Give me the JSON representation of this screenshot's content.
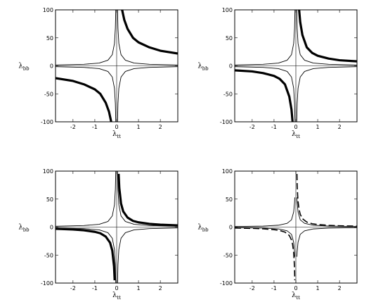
{
  "chart_data": [
    {
      "type": "line",
      "panel": "top-left",
      "xlabel": "λtt",
      "ylabel": "λbb",
      "xlim": [
        -2.8,
        2.8
      ],
      "ylim": [
        -100,
        100
      ],
      "xticks": [
        -2,
        -1,
        0,
        1,
        2
      ],
      "yticks": [
        -100,
        -50,
        0,
        50,
        100
      ],
      "xtick_labels": [
        "-2",
        "-1",
        "0",
        "1",
        "2"
      ],
      "ytick_labels": [
        "-100",
        "-50",
        "0",
        "50",
        "100"
      ],
      "series": [
        {
          "style": "solid-thin",
          "x": [
            -2.8,
            -1.5,
            -0.8,
            -0.4,
            -0.2,
            -0.1,
            -0.06,
            -0.04,
            -0.03
          ],
          "y": [
            1.5,
            2.7,
            5,
            10,
            20,
            40,
            67,
            100,
            100
          ]
        },
        {
          "style": "solid-thin",
          "x": [
            0.03,
            0.04,
            0.06,
            0.1,
            0.2,
            0.4,
            0.8,
            1.5,
            2.8
          ],
          "y": [
            100,
            100,
            67,
            40,
            20,
            10,
            5,
            2.7,
            1.5
          ]
        },
        {
          "style": "solid-thin",
          "x": [
            -2.8,
            -1.5,
            -0.8,
            -0.4,
            -0.2,
            -0.1,
            -0.06,
            -0.04
          ],
          "y": [
            -1.5,
            -2.7,
            -5,
            -10,
            -20,
            -40,
            -67,
            -100
          ]
        },
        {
          "style": "solid-thin",
          "x": [
            0.04,
            0.06,
            0.1,
            0.2,
            0.4,
            0.8,
            1.5,
            2.8
          ],
          "y": [
            -100,
            -67,
            -40,
            -20,
            -10,
            -5,
            -2.7,
            -1.5
          ]
        },
        {
          "style": "double-dash",
          "x": [
            0.25,
            0.35,
            0.5,
            0.75,
            1.0,
            1.5,
            2.0,
            2.8
          ],
          "y": [
            100,
            82,
            66,
            50,
            42,
            33,
            27,
            22
          ]
        },
        {
          "style": "double-dash",
          "x": [
            -2.8,
            -2.0,
            -1.5,
            -1.0,
            -0.75,
            -0.5,
            -0.35,
            -0.25
          ],
          "y": [
            -22,
            -27,
            -33,
            -42,
            -50,
            -66,
            -82,
            -100
          ]
        }
      ]
    },
    {
      "type": "line",
      "panel": "top-right",
      "xlabel": "λtt",
      "ylabel": "λbb",
      "xlim": [
        -2.8,
        2.8
      ],
      "ylim": [
        -100,
        100
      ],
      "xticks": [
        -2,
        -1,
        0,
        1,
        2
      ],
      "yticks": [
        -100,
        -50,
        0,
        50,
        100
      ],
      "xtick_labels": [
        "-2",
        "-1",
        "0",
        "1",
        "2"
      ],
      "ytick_labels": [
        "-100",
        "-50",
        "0",
        "50",
        "100"
      ],
      "series": [
        {
          "style": "solid-thin",
          "x": [
            -2.8,
            -1.5,
            -0.8,
            -0.4,
            -0.2,
            -0.1,
            -0.06,
            -0.04,
            -0.03
          ],
          "y": [
            1.5,
            2.7,
            5,
            10,
            20,
            40,
            67,
            100,
            100
          ]
        },
        {
          "style": "solid-thin",
          "x": [
            0.03,
            0.04,
            0.06,
            0.1,
            0.2,
            0.4,
            0.8,
            1.5,
            2.8
          ],
          "y": [
            100,
            100,
            67,
            40,
            20,
            10,
            5,
            2.7,
            1.5
          ]
        },
        {
          "style": "solid-thin",
          "x": [
            -2.8,
            -1.5,
            -0.8,
            -0.4,
            -0.2,
            -0.1,
            -0.06,
            -0.04
          ],
          "y": [
            -1.5,
            -2.7,
            -5,
            -10,
            -20,
            -40,
            -67,
            -100
          ]
        },
        {
          "style": "solid-thin",
          "x": [
            0.04,
            0.06,
            0.1,
            0.2,
            0.4,
            0.8,
            1.5,
            2.8
          ],
          "y": [
            -100,
            -67,
            -40,
            -20,
            -10,
            -5,
            -2.7,
            -1.5
          ]
        },
        {
          "style": "double-dash",
          "x": [
            0.15,
            0.2,
            0.3,
            0.5,
            0.75,
            1.0,
            1.5,
            2.0,
            2.8
          ],
          "y": [
            100,
            78,
            55,
            33,
            23,
            18,
            13,
            10,
            8
          ]
        },
        {
          "style": "double-dash",
          "x": [
            -2.8,
            -2.0,
            -1.5,
            -1.0,
            -0.75,
            -0.5,
            -0.3,
            -0.2,
            -0.15
          ],
          "y": [
            -8,
            -10,
            -13,
            -18,
            -23,
            -33,
            -55,
            -78,
            -100
          ]
        }
      ]
    },
    {
      "type": "line",
      "panel": "bottom-left",
      "xlabel": "λtt",
      "ylabel": "λbb",
      "xlim": [
        -2.8,
        2.8
      ],
      "ylim": [
        -100,
        100
      ],
      "xticks": [
        -2,
        -1,
        0,
        1,
        2
      ],
      "yticks": [
        -100,
        -50,
        0,
        50,
        100
      ],
      "xtick_labels": [
        "-2",
        "-1",
        "0",
        "1",
        "2"
      ],
      "ytick_labels": [
        "-100",
        "-50",
        "0",
        "50",
        "100"
      ],
      "series": [
        {
          "style": "solid-thin",
          "x": [
            -2.8,
            -1.5,
            -0.8,
            -0.4,
            -0.2,
            -0.1,
            -0.06,
            -0.04,
            -0.03
          ],
          "y": [
            1.5,
            2.7,
            5,
            10,
            20,
            40,
            67,
            100,
            100
          ]
        },
        {
          "style": "solid-thin",
          "x": [
            0.03,
            0.04,
            0.06,
            0.1,
            0.2,
            0.4,
            0.8,
            1.5,
            2.8
          ],
          "y": [
            100,
            100,
            67,
            40,
            20,
            10,
            5,
            2.7,
            1.5
          ]
        },
        {
          "style": "solid-thin",
          "x": [
            -2.8,
            -1.5,
            -0.8,
            -0.4,
            -0.2,
            -0.1,
            -0.06,
            -0.04
          ],
          "y": [
            -1.5,
            -2.7,
            -5,
            -10,
            -20,
            -40,
            -67,
            -100
          ]
        },
        {
          "style": "solid-thin",
          "x": [
            0.04,
            0.06,
            0.1,
            0.2,
            0.4,
            0.8,
            1.5,
            2.8
          ],
          "y": [
            -100,
            -67,
            -40,
            -20,
            -10,
            -5,
            -2.7,
            -1.5
          ]
        },
        {
          "style": "double-dash",
          "x": [
            0.09,
            0.12,
            0.2,
            0.3,
            0.5,
            0.75,
            1.0,
            1.5,
            2.0,
            2.8
          ],
          "y": [
            95,
            70,
            42,
            28,
            17,
            11,
            8.5,
            5.7,
            4.3,
            3
          ]
        },
        {
          "style": "double-dash",
          "x": [
            -2.8,
            -2.0,
            -1.5,
            -1.0,
            -0.75,
            -0.5,
            -0.3,
            -0.2,
            -0.12,
            -0.09
          ],
          "y": [
            -3,
            -4.3,
            -5.7,
            -8.5,
            -11,
            -17,
            -28,
            -42,
            -70,
            -95
          ]
        }
      ]
    },
    {
      "type": "line",
      "panel": "bottom-right",
      "xlabel": "λtt",
      "ylabel": "λbb",
      "xlim": [
        -2.8,
        2.8
      ],
      "ylim": [
        -100,
        100
      ],
      "xticks": [
        -2,
        -1,
        0,
        1,
        2
      ],
      "yticks": [
        -100,
        -50,
        0,
        50,
        100
      ],
      "xtick_labels": [
        "-2",
        "-1",
        "0",
        "1",
        "2"
      ],
      "ytick_labels": [
        "-100",
        "-50",
        "0",
        "50",
        "100"
      ],
      "series": [
        {
          "style": "solid-thin",
          "x": [
            -2.8,
            -1.5,
            -0.8,
            -0.4,
            -0.2,
            -0.1,
            -0.06,
            -0.05
          ],
          "y": [
            1,
            1.8,
            3.3,
            6.7,
            13,
            27,
            44,
            53
          ]
        },
        {
          "style": "solid-thin",
          "x": [
            0.05,
            0.06,
            0.1,
            0.2,
            0.4,
            0.8,
            1.5,
            2.8
          ],
          "y": [
            53,
            44,
            27,
            13,
            6.7,
            3.3,
            1.8,
            1
          ]
        },
        {
          "style": "solid-thin",
          "x": [
            -2.8,
            -1.5,
            -0.8,
            -0.4,
            -0.2,
            -0.1,
            -0.06,
            -0.05
          ],
          "y": [
            -1,
            -1.8,
            -3.3,
            -6.7,
            -13,
            -27,
            -44,
            -53
          ]
        },
        {
          "style": "solid-thin",
          "x": [
            0.05,
            0.06,
            0.1,
            0.2,
            0.4,
            0.8,
            1.5,
            2.8
          ],
          "y": [
            -53,
            -44,
            -27,
            -13,
            -6.7,
            -3.3,
            -1.8,
            -1
          ]
        },
        {
          "style": "long-dash",
          "x": [
            0.05,
            0.06,
            0.08,
            0.1,
            0.15,
            0.2,
            0.3,
            0.5,
            0.75,
            1.0,
            1.5,
            2.0,
            2.8
          ],
          "y": [
            95,
            75,
            58,
            46,
            31,
            23,
            15,
            9,
            6,
            4.6,
            3.1,
            2.3,
            1.6
          ]
        },
        {
          "style": "long-dash",
          "x": [
            -2.8,
            -2.0,
            -1.5,
            -1.0,
            -0.75,
            -0.5,
            -0.3,
            -0.2,
            -0.15,
            -0.1,
            -0.08,
            -0.06,
            -0.05
          ],
          "y": [
            -1.6,
            -2.3,
            -3.1,
            -4.6,
            -6,
            -9,
            -15,
            -23,
            -31,
            -46,
            -58,
            -75,
            -95
          ]
        }
      ]
    }
  ]
}
